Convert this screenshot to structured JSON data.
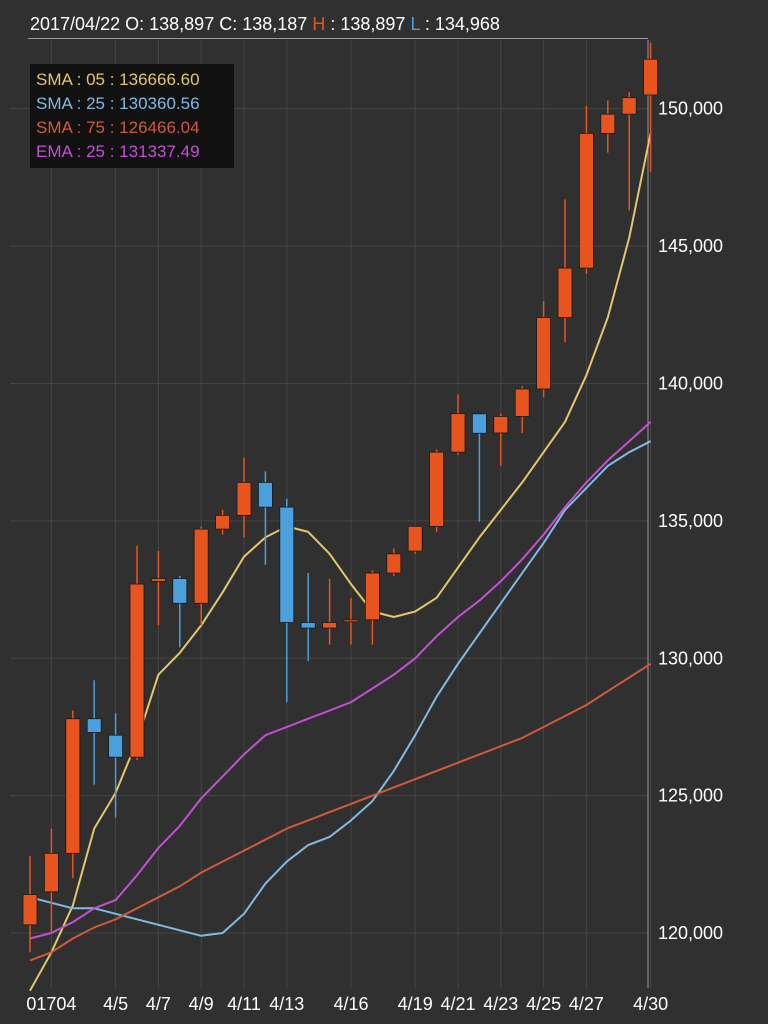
{
  "header": {
    "date": "2017/04/22",
    "open_label": "O:",
    "open_value": "138,897",
    "close_label": "C:",
    "close_value": "138,187",
    "high_label": "H",
    "high_value": ": 138,897",
    "low_label": "L",
    "low_value": ": 134,968"
  },
  "legend": [
    {
      "name": "SMA",
      "period": "05",
      "value": "136666.60",
      "color": "#e3c76a"
    },
    {
      "name": "SMA",
      "period": "25",
      "value": "130360.56",
      "color": "#7fbbe3"
    },
    {
      "name": "SMA",
      "period": "75",
      "value": "126466.04",
      "color": "#d05a3a"
    },
    {
      "name": "EMA",
      "period": "25",
      "value": "131337.49",
      "color": "#c44fd6"
    }
  ],
  "colors": {
    "up": "#e8541e",
    "down": "#4a9fdc",
    "sma05": "#e3c76a",
    "sma25": "#7fbbe3",
    "sma75": "#d05a3a",
    "ema25": "#c44fd6",
    "grid": "#444444",
    "background": "#303030"
  },
  "chart_data": {
    "type": "candlestick",
    "ylim": [
      118000,
      152500
    ],
    "y_ticks": [
      120000,
      125000,
      130000,
      135000,
      140000,
      145000,
      150000
    ],
    "y_tick_labels": [
      "120,000",
      "125,000",
      "130,000",
      "135,000",
      "140,000",
      "145,000",
      "150,000"
    ],
    "x_tick_labels": [
      {
        "index": 1,
        "label": "01704"
      },
      {
        "index": 4,
        "label": "4/5"
      },
      {
        "index": 6,
        "label": "4/7"
      },
      {
        "index": 8,
        "label": "4/9"
      },
      {
        "index": 10,
        "label": "4/11"
      },
      {
        "index": 12,
        "label": "4/13"
      },
      {
        "index": 15,
        "label": "4/16"
      },
      {
        "index": 18,
        "label": "4/19"
      },
      {
        "index": 20,
        "label": "4/21"
      },
      {
        "index": 22,
        "label": "4/23"
      },
      {
        "index": 24,
        "label": "4/25"
      },
      {
        "index": 26,
        "label": "4/27"
      },
      {
        "index": 29,
        "label": "4/30"
      }
    ],
    "candles": [
      {
        "o": 120300,
        "h": 122800,
        "l": 119300,
        "c": 121400
      },
      {
        "o": 121500,
        "h": 123800,
        "l": 120000,
        "c": 122900
      },
      {
        "o": 122900,
        "h": 128100,
        "l": 122000,
        "c": 127800
      },
      {
        "o": 127800,
        "h": 129200,
        "l": 125400,
        "c": 127300
      },
      {
        "o": 127200,
        "h": 128000,
        "l": 124200,
        "c": 126400
      },
      {
        "o": 126400,
        "h": 134100,
        "l": 126300,
        "c": 132700
      },
      {
        "o": 132800,
        "h": 133900,
        "l": 131200,
        "c": 132900
      },
      {
        "o": 132900,
        "h": 133000,
        "l": 130400,
        "c": 132000
      },
      {
        "o": 132000,
        "h": 134800,
        "l": 131200,
        "c": 134700
      },
      {
        "o": 134700,
        "h": 135400,
        "l": 134500,
        "c": 135200
      },
      {
        "o": 135200,
        "h": 137300,
        "l": 134400,
        "c": 136400
      },
      {
        "o": 136400,
        "h": 136800,
        "l": 133400,
        "c": 135500
      },
      {
        "o": 135500,
        "h": 135800,
        "l": 128400,
        "c": 131300
      },
      {
        "o": 131300,
        "h": 133100,
        "l": 129900,
        "c": 131100
      },
      {
        "o": 131100,
        "h": 132900,
        "l": 130500,
        "c": 131300
      },
      {
        "o": 131400,
        "h": 132200,
        "l": 130500,
        "c": 131400
      },
      {
        "o": 131400,
        "h": 133200,
        "l": 130500,
        "c": 133100
      },
      {
        "o": 133100,
        "h": 134000,
        "l": 133000,
        "c": 133800
      },
      {
        "o": 133900,
        "h": 134800,
        "l": 133800,
        "c": 134800
      },
      {
        "o": 134800,
        "h": 137600,
        "l": 134600,
        "c": 137500
      },
      {
        "o": 137500,
        "h": 139600,
        "l": 137400,
        "c": 138900
      },
      {
        "o": 138897,
        "h": 138897,
        "l": 134968,
        "c": 138187
      },
      {
        "o": 138200,
        "h": 138900,
        "l": 137000,
        "c": 138800
      },
      {
        "o": 138800,
        "h": 139900,
        "l": 138200,
        "c": 139800
      },
      {
        "o": 139800,
        "h": 143000,
        "l": 139500,
        "c": 142400
      },
      {
        "o": 142400,
        "h": 146700,
        "l": 141500,
        "c": 144200
      },
      {
        "o": 144200,
        "h": 150100,
        "l": 144000,
        "c": 149100
      },
      {
        "o": 149100,
        "h": 150300,
        "l": 148400,
        "c": 149800
      },
      {
        "o": 149800,
        "h": 150600,
        "l": 146300,
        "c": 150400
      },
      {
        "o": 150500,
        "h": 152400,
        "l": 147700,
        "c": 151800
      }
    ],
    "series": [
      {
        "name": "SMA 05",
        "key": "sma05",
        "values": [
          117900,
          119300,
          121000,
          123800,
          125100,
          127000,
          129400,
          130200,
          131200,
          132400,
          133700,
          134400,
          134800,
          134600,
          133800,
          132700,
          131700,
          131500,
          131700,
          132200,
          133300,
          134400,
          135400,
          136400,
          137500,
          138600,
          140300,
          142400,
          145300,
          149100
        ]
      },
      {
        "name": "SMA 25",
        "key": "sma25",
        "values": [
          121300,
          121100,
          120900,
          120900,
          120700,
          120500,
          120300,
          120100,
          119900,
          120000,
          120700,
          121800,
          122600,
          123200,
          123500,
          124100,
          124800,
          125900,
          127200,
          128600,
          129800,
          130900,
          132000,
          133100,
          134200,
          135400,
          136200,
          137000,
          137500,
          137900
        ]
      },
      {
        "name": "SMA 75",
        "key": "sma75",
        "values": [
          119000,
          119300,
          119800,
          120200,
          120500,
          120900,
          121300,
          121700,
          122200,
          122600,
          123000,
          123400,
          123800,
          124100,
          124400,
          124700,
          125000,
          125300,
          125600,
          125900,
          126200,
          126500,
          126800,
          127100,
          127500,
          127900,
          128300,
          128800,
          129300,
          129800
        ]
      },
      {
        "name": "EMA 25",
        "key": "ema25",
        "values": [
          119800,
          120000,
          120400,
          120900,
          121200,
          122100,
          123100,
          123900,
          124900,
          125700,
          126500,
          127200,
          127500,
          127800,
          128100,
          128400,
          128900,
          129400,
          130000,
          130800,
          131500,
          132100,
          132800,
          133600,
          134500,
          135500,
          136400,
          137200,
          137900,
          138600
        ]
      }
    ]
  }
}
